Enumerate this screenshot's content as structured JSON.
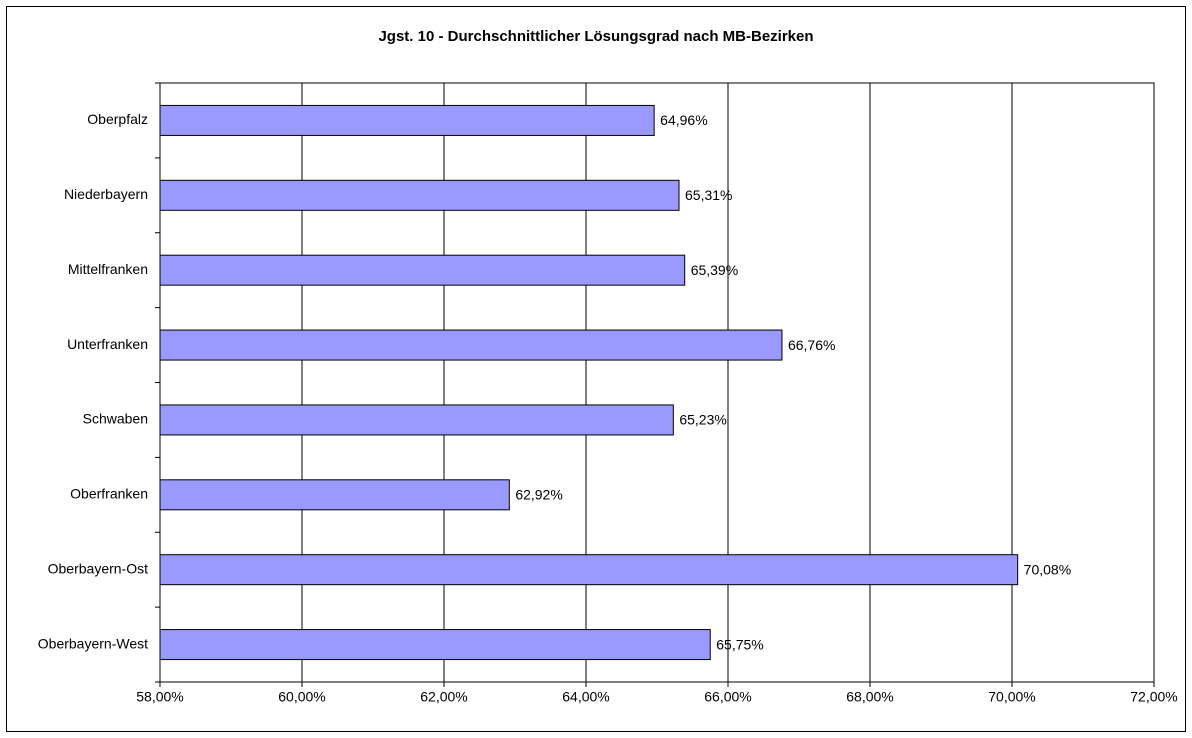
{
  "chart_data": {
    "type": "hbar",
    "title": "Jgst. 10 - Durchschnittlicher Lösungsgrad nach MB-Bezirken",
    "categories": [
      "Oberpfalz",
      "Niederbayern",
      "Mittelfranken",
      "Unterfranken",
      "Schwaben",
      "Oberfranken",
      "Oberbayern-Ost",
      "Oberbayern-West"
    ],
    "values": [
      64.96,
      65.31,
      65.39,
      66.76,
      65.23,
      62.92,
      70.08,
      65.75
    ],
    "value_labels": [
      "64,96%",
      "65,31%",
      "65,39%",
      "66,76%",
      "65,23%",
      "62,92%",
      "70,08%",
      "65,75%"
    ],
    "color": "#9999ff",
    "xlim": [
      58,
      72
    ],
    "xticks": [
      {
        "value": 58,
        "label": "58,00%"
      },
      {
        "value": 60,
        "label": "60,00%"
      },
      {
        "value": 62,
        "label": "62,00%"
      },
      {
        "value": 64,
        "label": "64,00%"
      },
      {
        "value": 66,
        "label": "66,00%"
      },
      {
        "value": 68,
        "label": "68,00%"
      },
      {
        "value": 70,
        "label": "70,00%"
      },
      {
        "value": 72,
        "label": "72,00%"
      }
    ],
    "grid": true
  }
}
